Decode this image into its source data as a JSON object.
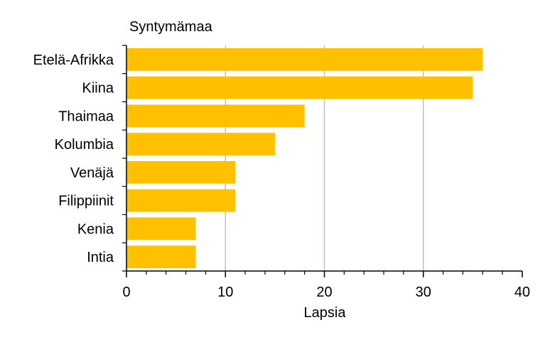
{
  "chart_data": {
    "type": "bar",
    "orientation": "horizontal",
    "categories": [
      "Etelä-Afrikka",
      "Kiina",
      "Thaimaa",
      "Kolumbia",
      "Venäjä",
      "Filippiinit",
      "Kenia",
      "Intia"
    ],
    "values": [
      36,
      35,
      18,
      15,
      11,
      11,
      7,
      7
    ],
    "category_axis_title": "Syntymämaa",
    "xlabel": "Lapsia",
    "xlim": [
      0,
      40
    ],
    "xticks": [
      "0",
      "10",
      "20",
      "30",
      "40"
    ],
    "grid": "vertical",
    "legend": "none",
    "bar_color": "#FFC000"
  }
}
